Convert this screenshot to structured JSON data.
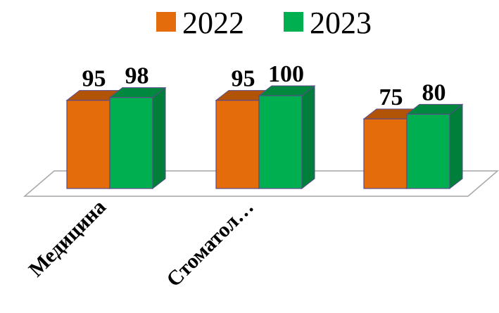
{
  "chart_data": {
    "type": "bar",
    "categories": [
      "Медицина",
      "Стоматол…",
      ""
    ],
    "series": [
      {
        "name": "2022",
        "values": [
          95,
          95,
          75
        ],
        "color": "#E46C0A"
      },
      {
        "name": "2023",
        "values": [
          98,
          100,
          80
        ],
        "color": "#00B050"
      }
    ],
    "data_labels": true,
    "legend_position": "top",
    "grid": false,
    "style": "3d-clustered-column"
  }
}
